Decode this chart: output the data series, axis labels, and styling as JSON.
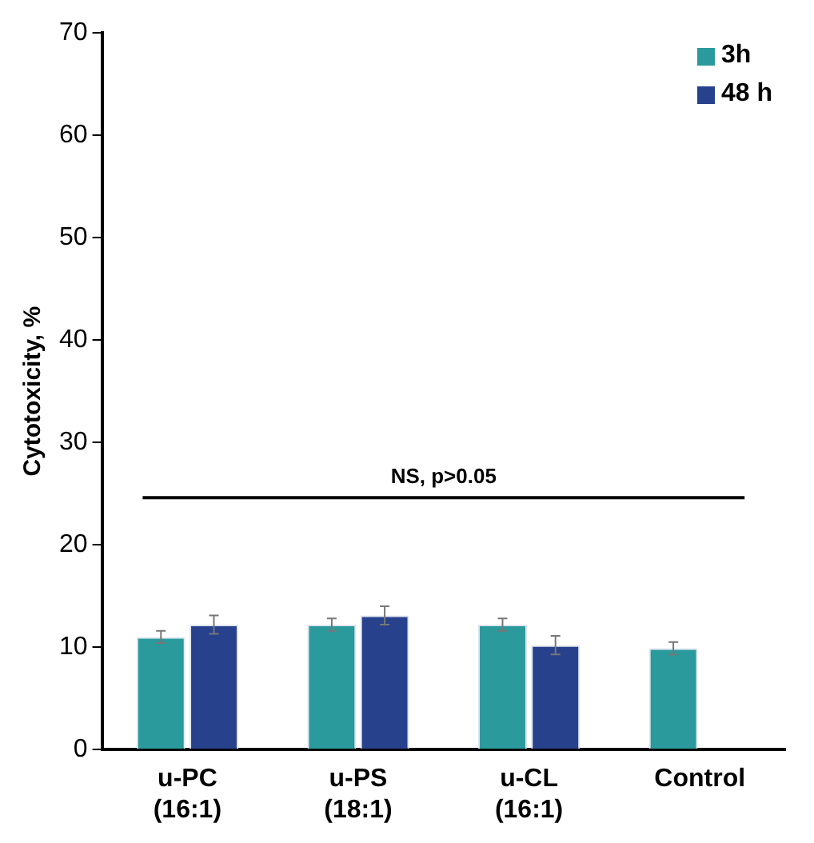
{
  "chart_data": {
    "type": "bar",
    "ylabel": "Cytotoxicity, %",
    "categories": [
      "u-PC\n(16:1)",
      "u-PS\n(18:1)",
      "u-CL\n(16:1)",
      "Control"
    ],
    "series": [
      {
        "name": "3h",
        "color": "#2a9a9c",
        "values": [
          11.0,
          12.2,
          12.2,
          9.9
        ],
        "errors": [
          0.6,
          0.6,
          0.6,
          0.6
        ]
      },
      {
        "name": "48 h",
        "color": "#27418c",
        "values": [
          12.2,
          13.1,
          10.2,
          null
        ],
        "errors": [
          0.9,
          0.9,
          0.9,
          null
        ]
      }
    ],
    "ylim": [
      0,
      70
    ],
    "yticks": [
      0,
      10,
      20,
      30,
      40,
      50,
      60,
      70
    ],
    "grid": false,
    "legend": "top right",
    "ref_lines": [
      {
        "axis": "y",
        "value": 24.6,
        "label": "NS, p>0.05",
        "color": "#000000"
      }
    ]
  }
}
